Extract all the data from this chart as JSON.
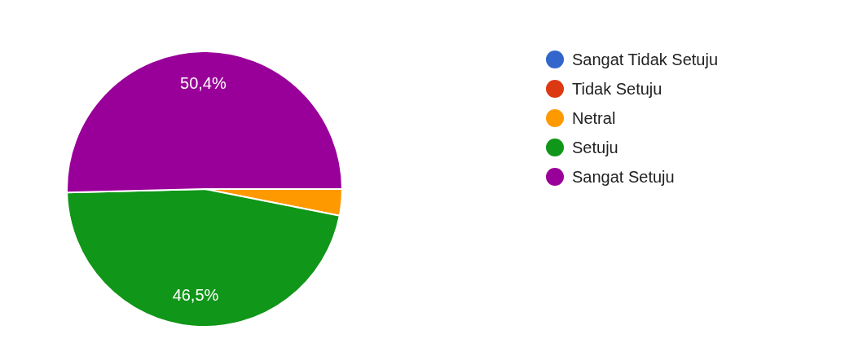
{
  "chart_data": {
    "type": "pie",
    "categories": [
      "Sangat Tidak Setuju",
      "Tidak Setuju",
      "Netral",
      "Setuju",
      "Sangat Setuju"
    ],
    "values": [
      0,
      0,
      3.1,
      46.5,
      50.4
    ],
    "colors": [
      "#3366cc",
      "#dc3912",
      "#ff9900",
      "#109618",
      "#990099"
    ],
    "value_labels": [
      null,
      null,
      null,
      "46,5%",
      "50,4%"
    ],
    "legend": "right"
  }
}
